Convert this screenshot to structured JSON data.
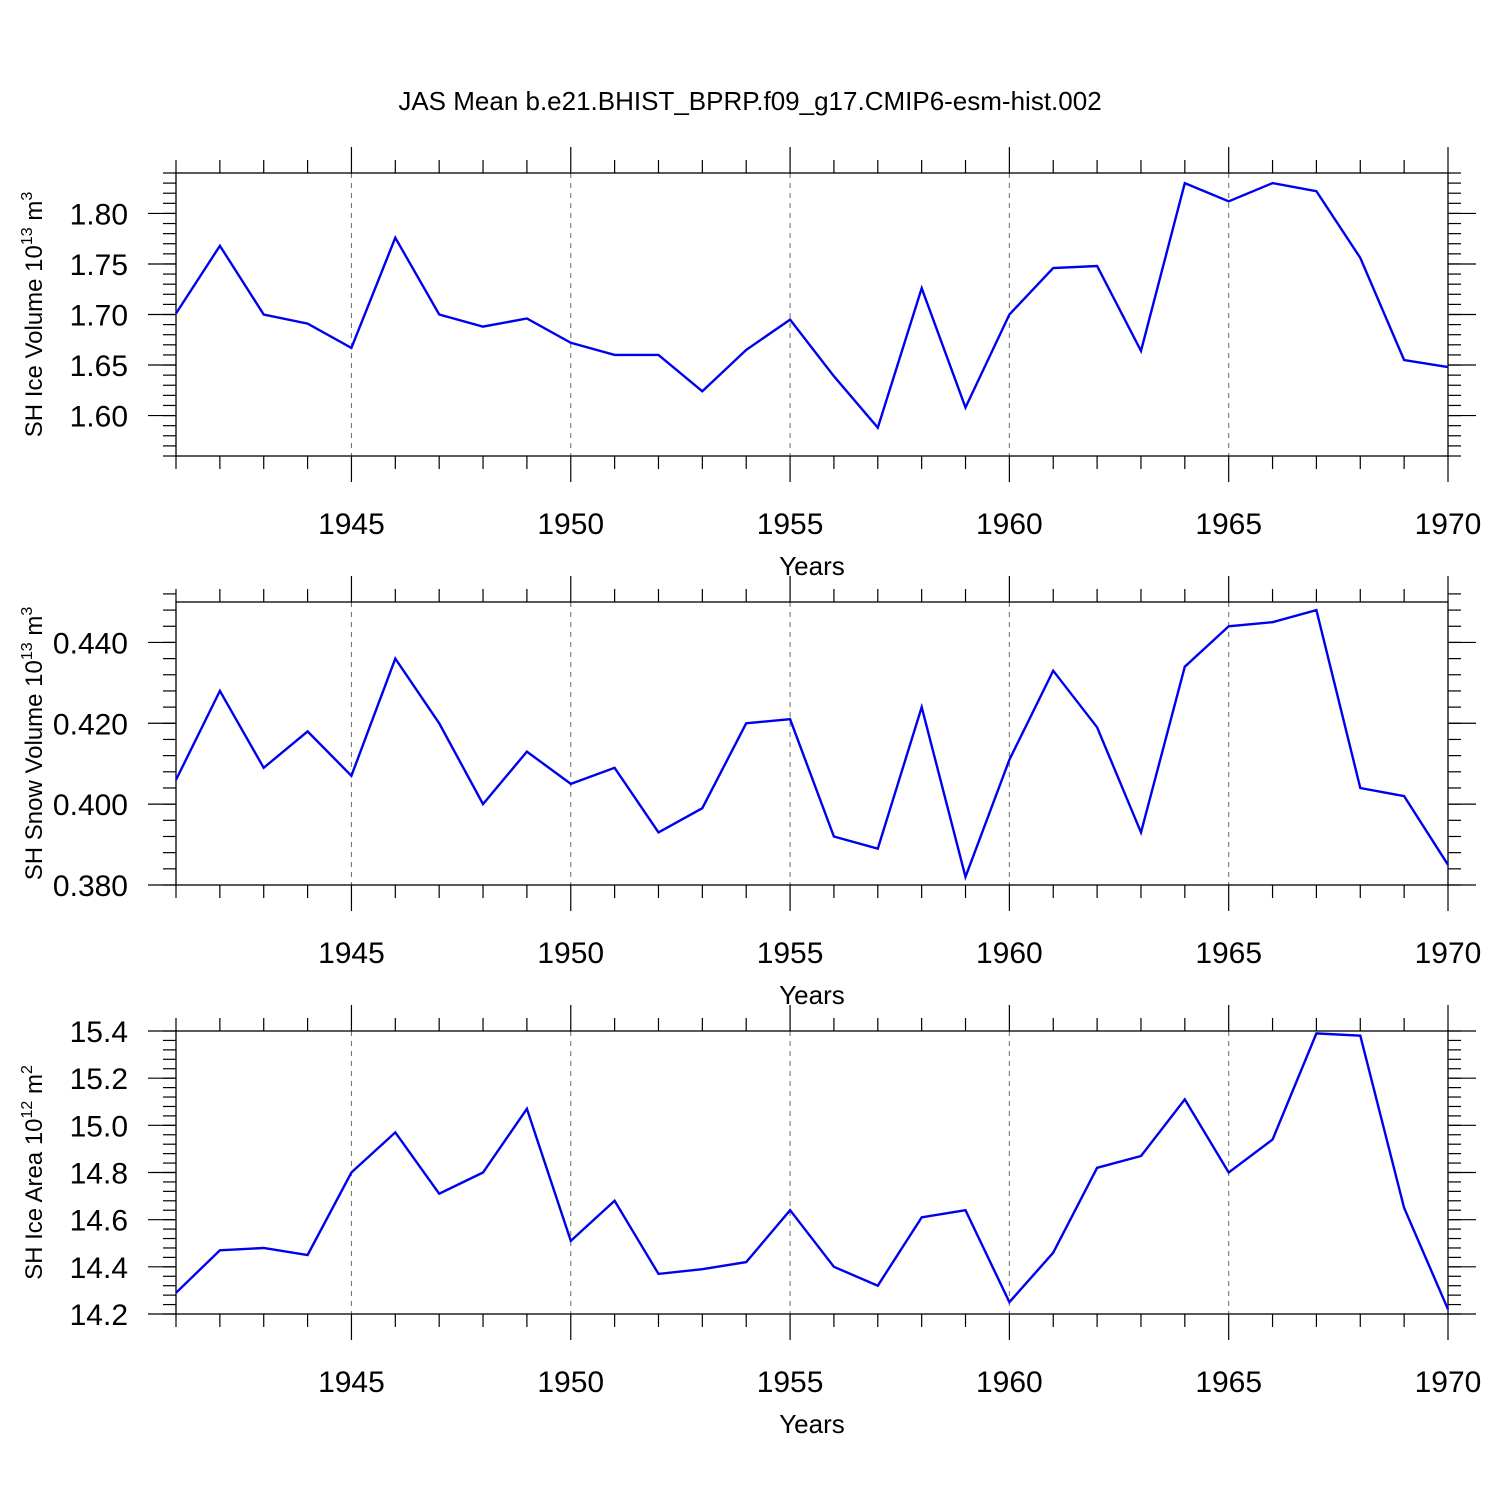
{
  "title": "JAS Mean b.e21.BHIST_BPRP.f09_g17.CMIP6-esm-hist.002",
  "chart_data": [
    {
      "type": "line",
      "xlabel": "Years",
      "ylabel": "SH Ice Volume 10",
      "ylabel_exp": "13",
      "ylabel_unit": " m",
      "ylabel_unit_exp": "3",
      "xlim": [
        1941,
        1970
      ],
      "ylim": [
        1.56,
        1.84
      ],
      "xticks": [
        1945,
        1950,
        1955,
        1960,
        1965,
        1970
      ],
      "xtick_labels": [
        "1945",
        "1950",
        "1955",
        "1960",
        "1965",
        "1970"
      ],
      "yticks": [
        1.6,
        1.65,
        1.7,
        1.75,
        1.8
      ],
      "ytick_labels": [
        "1.60",
        "1.65",
        "1.70",
        "1.75",
        "1.80"
      ],
      "yminor_step": 0.01,
      "grid": "dashed vertical at major x ticks",
      "series": [
        {
          "color": "#0000ee",
          "x": [
            1941,
            1942,
            1943,
            1944,
            1945,
            1946,
            1947,
            1948,
            1949,
            1950,
            1951,
            1952,
            1953,
            1954,
            1955,
            1956,
            1957,
            1958,
            1959,
            1960,
            1961,
            1962,
            1963,
            1964,
            1965,
            1966,
            1967,
            1968,
            1969,
            1970
          ],
          "y": [
            1.701,
            1.768,
            1.7,
            1.691,
            1.667,
            1.776,
            1.7,
            1.688,
            1.696,
            1.672,
            1.66,
            1.66,
            1.624,
            1.665,
            1.695,
            1.639,
            1.588,
            1.726,
            1.608,
            1.7,
            1.746,
            1.748,
            1.664,
            1.83,
            1.812,
            1.83,
            1.822,
            1.756,
            1.655,
            1.648
          ]
        }
      ]
    },
    {
      "type": "line",
      "xlabel": "Years",
      "ylabel": "SH Snow Volume 10",
      "ylabel_exp": "13",
      "ylabel_unit": " m",
      "ylabel_unit_exp": "3",
      "xlim": [
        1941,
        1970
      ],
      "ylim": [
        0.38,
        0.45
      ],
      "xticks": [
        1945,
        1950,
        1955,
        1960,
        1965,
        1970
      ],
      "xtick_labels": [
        "1945",
        "1950",
        "1955",
        "1960",
        "1965",
        "1970"
      ],
      "yticks": [
        0.38,
        0.4,
        0.42,
        0.44
      ],
      "ytick_labels": [
        "0.380",
        "0.400",
        "0.420",
        "0.440"
      ],
      "yminor_step": 0.004,
      "grid": "dashed vertical at major x ticks",
      "series": [
        {
          "color": "#0000ee",
          "x": [
            1941,
            1942,
            1943,
            1944,
            1945,
            1946,
            1947,
            1948,
            1949,
            1950,
            1951,
            1952,
            1953,
            1954,
            1955,
            1956,
            1957,
            1958,
            1959,
            1960,
            1961,
            1962,
            1963,
            1964,
            1965,
            1966,
            1967,
            1968,
            1969,
            1970
          ],
          "y": [
            0.406,
            0.428,
            0.409,
            0.418,
            0.407,
            0.436,
            0.42,
            0.4,
            0.413,
            0.405,
            0.409,
            0.393,
            0.399,
            0.42,
            0.421,
            0.392,
            0.389,
            0.424,
            0.382,
            0.411,
            0.433,
            0.419,
            0.393,
            0.434,
            0.444,
            0.445,
            0.448,
            0.404,
            0.402,
            0.385
          ]
        }
      ]
    },
    {
      "type": "line",
      "xlabel": "Years",
      "ylabel": "SH Ice Area 10",
      "ylabel_exp": "12",
      "ylabel_unit": " m",
      "ylabel_unit_exp": "2",
      "xlim": [
        1941,
        1970
      ],
      "ylim": [
        14.2,
        15.4
      ],
      "xticks": [
        1945,
        1950,
        1955,
        1960,
        1965,
        1970
      ],
      "xtick_labels": [
        "1945",
        "1950",
        "1955",
        "1960",
        "1965",
        "1970"
      ],
      "yticks": [
        14.2,
        14.4,
        14.6,
        14.8,
        15.0,
        15.2,
        15.4
      ],
      "ytick_labels": [
        "14.2",
        "14.4",
        "14.6",
        "14.8",
        "15.0",
        "15.2",
        "15.4"
      ],
      "yminor_step": 0.04,
      "grid": "dashed vertical at major x ticks",
      "series": [
        {
          "color": "#0000ee",
          "x": [
            1941,
            1942,
            1943,
            1944,
            1945,
            1946,
            1947,
            1948,
            1949,
            1950,
            1951,
            1952,
            1953,
            1954,
            1955,
            1956,
            1957,
            1958,
            1959,
            1960,
            1961,
            1962,
            1963,
            1964,
            1965,
            1966,
            1967,
            1968,
            1969,
            1970
          ],
          "y": [
            14.29,
            14.47,
            14.48,
            14.45,
            14.8,
            14.97,
            14.71,
            14.8,
            15.07,
            14.51,
            14.68,
            14.37,
            14.39,
            14.42,
            14.64,
            14.4,
            14.32,
            14.61,
            14.64,
            14.25,
            14.46,
            14.82,
            14.87,
            15.11,
            14.8,
            14.94,
            15.39,
            15.38,
            14.65,
            14.22
          ]
        }
      ]
    }
  ]
}
